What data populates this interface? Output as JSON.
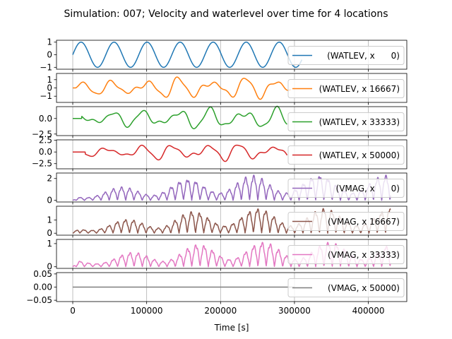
{
  "chart_data": {
    "type": "line",
    "title": "Simulation: 007; Velocity and waterlevel over time for 4 locations",
    "xlabel": "Time [s]",
    "xlim": [
      -22000,
      452000
    ],
    "x_ticks": [
      0,
      100000,
      200000,
      300000,
      400000
    ],
    "x_tick_labels": [
      "0",
      "100000",
      "200000",
      "300000",
      "400000"
    ],
    "x_end": 430000,
    "grid": true,
    "legend_placement": "right",
    "panels": [
      {
        "legend": "(WATLEV, x      0)",
        "color": "#1f77b4",
        "ylim": [
          -1.15,
          1.15
        ],
        "y_ticks": [
          -1,
          0,
          1
        ],
        "y_tick_labels": [
          "−1",
          "0",
          "1"
        ],
        "kind": "sine",
        "amplitude": 1.0,
        "period_s": 44700,
        "end_s": 310000
      },
      {
        "legend": "(WATLEV, x 16667)",
        "color": "#ff7f0e",
        "ylim": [
          -1.75,
          1.75
        ],
        "y_ticks": [
          -1,
          0,
          1
        ],
        "y_tick_labels": [
          "−1",
          "0",
          "1"
        ],
        "kind": "waterlevel",
        "amplitude": 1.4,
        "start_s": 4000,
        "end_s": 295000
      },
      {
        "legend": "(WATLEV, x 33333)",
        "color": "#2ca02c",
        "ylim": [
          -2.75,
          1.9
        ],
        "y_ticks": [
          -2.5,
          0.0
        ],
        "y_tick_labels": [
          "−2.5",
          "0.0"
        ],
        "kind": "waterlevel",
        "amplitude": 1.85,
        "start_s": 12000,
        "end_s": 290000
      },
      {
        "legend": "(WATLEV, x 50000)",
        "color": "#d62728",
        "ylim": [
          -3.6,
          2.6
        ],
        "y_ticks": [
          -2.5,
          0.0,
          2.5
        ],
        "y_tick_labels": [
          "−2.5",
          "0.0",
          "2.5"
        ],
        "kind": "waterlevel",
        "amplitude": 2.0,
        "start_s": 17000,
        "end_s": 290000
      },
      {
        "legend": "(VMAG, x      0)",
        "color": "#9467bd",
        "ylim": [
          -0.15,
          2.5
        ],
        "y_ticks": [
          0,
          2
        ],
        "y_tick_labels": [
          "0",
          "2"
        ],
        "kind": "velocity",
        "amplitude": 2.25,
        "end_s": 430000
      },
      {
        "legend": "(VMAG, x 16667)",
        "color": "#8c564b",
        "ylim": [
          -0.15,
          2.05
        ],
        "y_ticks": [
          0,
          1
        ],
        "y_tick_labels": [
          "0",
          "1"
        ],
        "kind": "velocity",
        "amplitude": 1.85,
        "end_s": 430000
      },
      {
        "legend": "(VMAG, x 33333)",
        "color": "#e377c2",
        "ylim": [
          -0.07,
          1.18
        ],
        "y_ticks": [
          0,
          1
        ],
        "y_tick_labels": [
          "0",
          "1"
        ],
        "kind": "velocity",
        "amplitude": 1.05,
        "end_s": 430000
      },
      {
        "legend": "(VMAG, x 50000)",
        "color": "#7f7f7f",
        "ylim": [
          -0.055,
          0.055
        ],
        "y_ticks": [
          -0.05,
          0.0,
          0.05
        ],
        "y_tick_labels": [
          "−0.05",
          "0.00",
          "0.05"
        ],
        "kind": "zero",
        "amplitude": 0,
        "end_s": 300000
      }
    ]
  }
}
